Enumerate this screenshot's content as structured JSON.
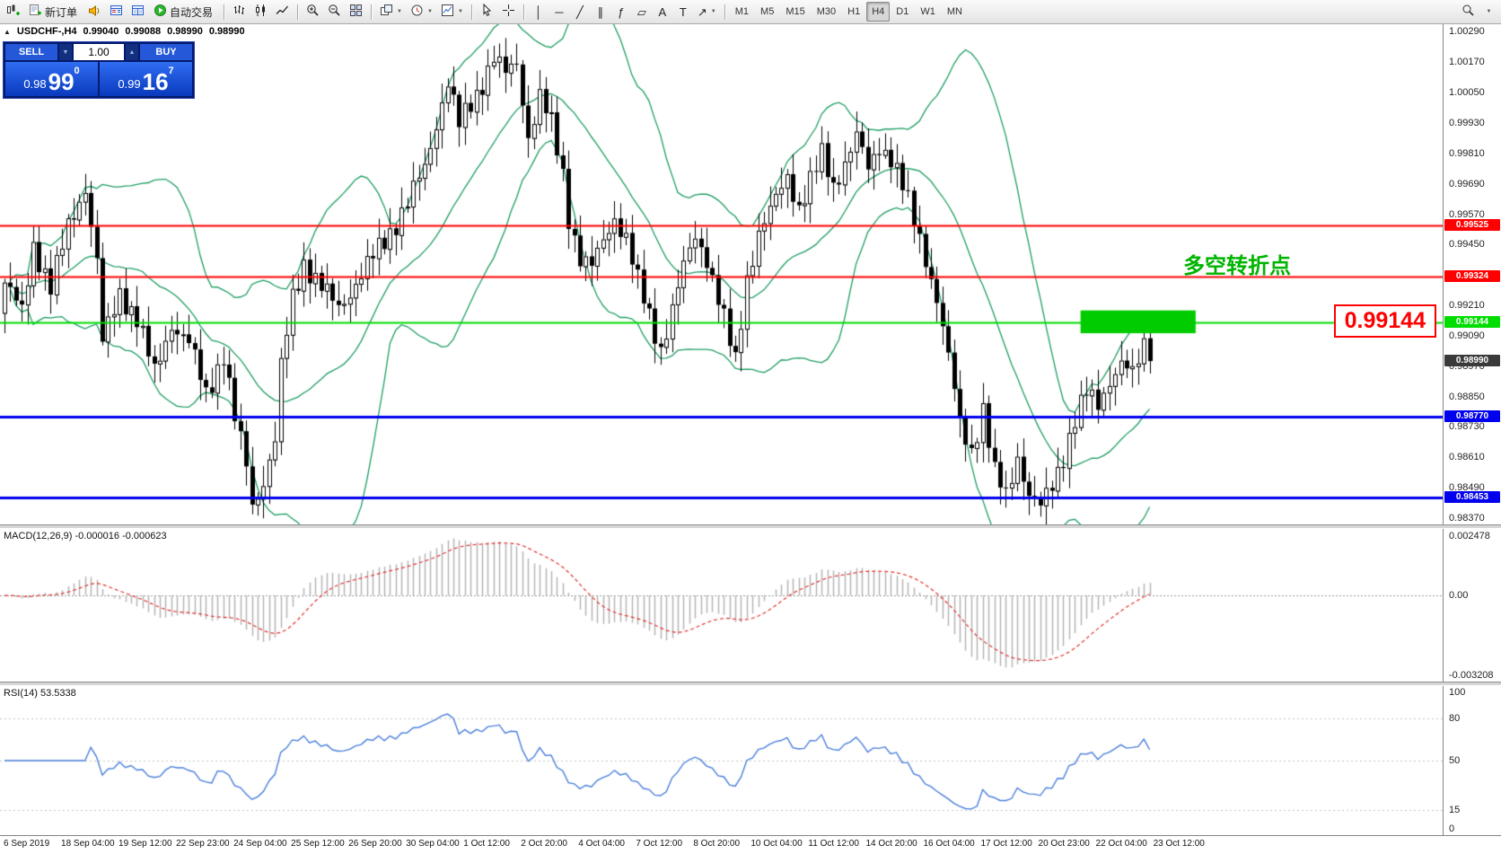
{
  "toolbar": {
    "new_order_label": "新订单",
    "autotrade_label": "自动交易",
    "timeframes": [
      "M1",
      "M5",
      "M15",
      "M30",
      "H1",
      "H4",
      "D1",
      "W1",
      "MN"
    ],
    "active_timeframe": "H4"
  },
  "chart_header": {
    "symbol": "USDCHF-,H4",
    "open": "0.99040",
    "high": "0.99088",
    "low": "0.98990",
    "close": "0.98990"
  },
  "one_click": {
    "sell_label": "SELL",
    "buy_label": "BUY",
    "volume": "1.00",
    "sell_price_main": "0.98",
    "sell_price_big": "99",
    "sell_price_sup": "0",
    "buy_price_main": "0.99",
    "buy_price_big": "16",
    "buy_price_sup": "7"
  },
  "annotation": {
    "text": "多空转折点",
    "color": "#00b400"
  },
  "callout": {
    "text": "0.99144",
    "color": "#ff0000"
  },
  "current_price": {
    "text": "0.98990"
  },
  "price_axis": {
    "labels": [
      "1.00290",
      "1.00170",
      "1.00050",
      "0.99930",
      "0.99810",
      "0.99690",
      "0.99570",
      "0.99450",
      "0.99330",
      "0.99210",
      "0.99090",
      "0.98970",
      "0.98850",
      "0.98730",
      "0.98610",
      "0.98490",
      "0.98370"
    ]
  },
  "levels": [
    {
      "price": 0.99525,
      "label": "0.99525",
      "color": "#ff0000",
      "width": 2
    },
    {
      "price": 0.99324,
      "label": "0.99324",
      "color": "#ff0000",
      "width": 2
    },
    {
      "price": 0.99144,
      "label": "0.99144",
      "color": "#00dd00",
      "width": 2
    },
    {
      "price": 0.9877,
      "label": "0.98770",
      "color": "#0000ee",
      "width": 3
    },
    {
      "price": 0.98453,
      "label": "0.98453",
      "color": "#0000ee",
      "width": 3
    }
  ],
  "highlight_zone": {
    "from_index": 187,
    "to_index": 207,
    "price_top": 0.9919,
    "price_bottom": 0.991,
    "color": "#00cc00"
  },
  "macd_panel": {
    "label": "MACD(12,26,9) -0.000016 -0.000623",
    "scale_top": "0.002478",
    "scale_zero": "0.00",
    "scale_bottom": "-0.003208"
  },
  "rsi_panel": {
    "label": "RSI(14) 53.5338",
    "scale": [
      "100",
      "80",
      "50",
      "15",
      "0"
    ]
  },
  "time_axis": [
    "6 Sep 2019",
    "18 Sep 04:00",
    "19 Sep 12:00",
    "22 Sep 23:00",
    "24 Sep 04:00",
    "25 Sep 12:00",
    "26 Sep 20:00",
    "30 Sep 04:00",
    "1 Oct 12:00",
    "2 Oct 20:00",
    "4 Oct 04:00",
    "7 Oct 12:00",
    "8 Oct 20:00",
    "10 Oct 04:00",
    "11 Oct 12:00",
    "14 Oct 20:00",
    "16 Oct 04:00",
    "17 Oct 12:00",
    "20 Oct 23:00",
    "22 Oct 04:00",
    "23 Oct 12:00"
  ],
  "chart_data": {
    "type": "candlestick",
    "symbol": "USDCHF",
    "timeframe": "H4",
    "price_top": 1.0032,
    "price_bottom": 0.98345,
    "candle_count": 200,
    "last_close": 0.9899,
    "close_anchors": [
      [
        0,
        0.993
      ],
      [
        3,
        0.9918
      ],
      [
        5,
        0.9945
      ],
      [
        8,
        0.9928
      ],
      [
        11,
        0.9952
      ],
      [
        14,
        0.9968
      ],
      [
        16,
        0.9938
      ],
      [
        17,
        0.9906
      ],
      [
        20,
        0.9926
      ],
      [
        23,
        0.9916
      ],
      [
        26,
        0.9894
      ],
      [
        29,
        0.9914
      ],
      [
        32,
        0.9906
      ],
      [
        35,
        0.9886
      ],
      [
        38,
        0.9902
      ],
      [
        40,
        0.9876
      ],
      [
        42,
        0.9858
      ],
      [
        43,
        0.9842
      ],
      [
        45,
        0.9852
      ],
      [
        47,
        0.9868
      ],
      [
        48,
        0.9896
      ],
      [
        50,
        0.9924
      ],
      [
        52,
        0.9938
      ],
      [
        55,
        0.9928
      ],
      [
        58,
        0.992
      ],
      [
        61,
        0.993
      ],
      [
        64,
        0.994
      ],
      [
        67,
        0.995
      ],
      [
        70,
        0.9962
      ],
      [
        73,
        0.9975
      ],
      [
        76,
        1.0002
      ],
      [
        77,
        1.001
      ],
      [
        79,
        0.9992
      ],
      [
        82,
        1.0004
      ],
      [
        85,
        1.002
      ],
      [
        87,
        1.0012
      ],
      [
        89,
        1.0016
      ],
      [
        91,
        0.9988
      ],
      [
        93,
        1.0004
      ],
      [
        95,
        0.9992
      ],
      [
        97,
        0.9972
      ],
      [
        98,
        0.9956
      ],
      [
        100,
        0.994
      ],
      [
        102,
        0.9936
      ],
      [
        104,
        0.9946
      ],
      [
        106,
        0.9956
      ],
      [
        108,
        0.9948
      ],
      [
        110,
        0.993
      ],
      [
        112,
        0.9916
      ],
      [
        114,
        0.9904
      ],
      [
        116,
        0.992
      ],
      [
        118,
        0.9936
      ],
      [
        120,
        0.9948
      ],
      [
        122,
        0.994
      ],
      [
        124,
        0.9924
      ],
      [
        126,
        0.9906
      ],
      [
        127,
        0.9898
      ],
      [
        129,
        0.9932
      ],
      [
        131,
        0.995
      ],
      [
        133,
        0.9958
      ],
      [
        136,
        0.9972
      ],
      [
        138,
        0.996
      ],
      [
        140,
        0.997
      ],
      [
        142,
        0.998
      ],
      [
        144,
        0.9968
      ],
      [
        146,
        0.9978
      ],
      [
        148,
        0.9988
      ],
      [
        150,
        0.9974
      ],
      [
        152,
        0.9984
      ],
      [
        154,
        0.998
      ],
      [
        156,
        0.9968
      ],
      [
        158,
        0.9954
      ],
      [
        160,
        0.994
      ],
      [
        162,
        0.9924
      ],
      [
        164,
        0.99
      ],
      [
        166,
        0.9874
      ],
      [
        168,
        0.9864
      ],
      [
        170,
        0.988
      ],
      [
        172,
        0.9854
      ],
      [
        174,
        0.9846
      ],
      [
        176,
        0.9862
      ],
      [
        178,
        0.9846
      ],
      [
        180,
        0.9841
      ],
      [
        182,
        0.985
      ],
      [
        184,
        0.9862
      ],
      [
        186,
        0.9876
      ],
      [
        188,
        0.9886
      ],
      [
        190,
        0.9882
      ],
      [
        192,
        0.9892
      ],
      [
        194,
        0.9898
      ],
      [
        196,
        0.9893
      ],
      [
        198,
        0.9906
      ],
      [
        199,
        0.9899
      ]
    ],
    "indicators": {
      "bollinger": {
        "period": 20,
        "deviation": 2,
        "color": "#1f9e63"
      },
      "macd": {
        "fast": 12,
        "slow": 26,
        "signal": 9,
        "hist_color": "#b6b6b6",
        "signal_color": "#e03232"
      },
      "rsi": {
        "period": 14,
        "value": 53.5338,
        "color": "#4a7fdb",
        "levels": [
          80,
          50,
          15
        ]
      }
    }
  }
}
